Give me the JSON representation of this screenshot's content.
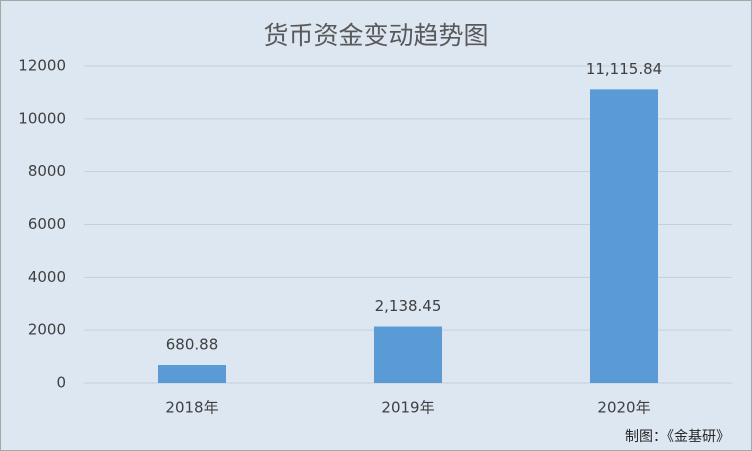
{
  "chart_data": {
    "type": "bar",
    "title": "货币资金变动趋势图",
    "categories": [
      "2018年",
      "2019年",
      "2020年"
    ],
    "values": [
      680.88,
      2138.45,
      11115.84
    ],
    "value_labels": [
      "680.88",
      "2,138.45",
      "11,115.84"
    ],
    "color": "#5b9bd5",
    "ylim": [
      0,
      12000
    ],
    "yticks": [
      0,
      2000,
      4000,
      6000,
      8000,
      10000,
      12000
    ],
    "grid": true,
    "source": "制图：《金基研》"
  }
}
